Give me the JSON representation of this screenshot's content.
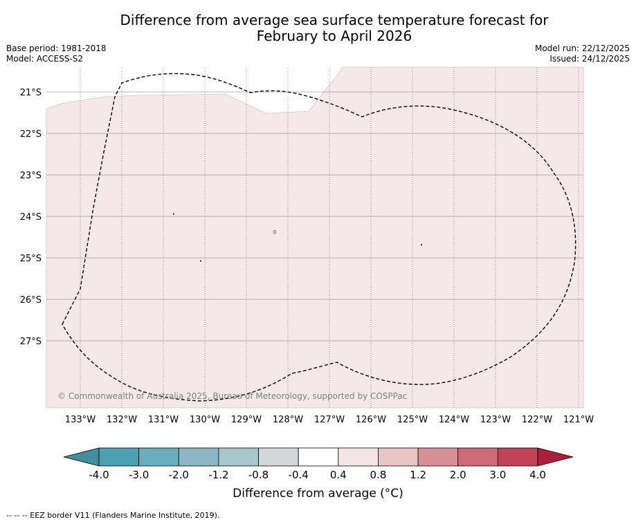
{
  "title": {
    "line1": "Difference from average sea surface temperature forecast for",
    "line2": "February to April 2026"
  },
  "meta": {
    "base_period": "Base period: 1981-2018",
    "model": "Model: ACCESS-S2",
    "model_run": "Model run: 22/12/2025",
    "issued": "Issued: 24/12/2025"
  },
  "map": {
    "copyright": "© Commonwealth of Australia 2025, Bureau of Meteorology, supported by COSPPac",
    "lon_labels": [
      "133°W",
      "132°W",
      "131°W",
      "130°W",
      "129°W",
      "128°W",
      "127°W",
      "126°W",
      "125°W",
      "124°W",
      "123°W",
      "122°W",
      "121°W"
    ],
    "lat_labels": [
      "21°S",
      "22°S",
      "23°S",
      "24°S",
      "25°S",
      "26°S",
      "27°S"
    ],
    "fill_color": "#f4e8e8"
  },
  "colorbar": {
    "ticks": [
      "-4.0",
      "-3.0",
      "-2.0",
      "-1.2",
      "-0.8",
      "-0.4",
      "0.4",
      "0.8",
      "1.2",
      "2.0",
      "3.0",
      "4.0"
    ],
    "colors": [
      "#3f8f9c",
      "#4aa1b2",
      "#6aaebd",
      "#8bb8c4",
      "#a9c8cc",
      "#d3d7d8",
      "#ffffff",
      "#f3e5e4",
      "#e8c4c2",
      "#d98f96",
      "#cf6b78",
      "#c24355",
      "#ae1f3d"
    ],
    "label": "Difference from average (°C)"
  },
  "footnote": "-- -- -- EEZ border V11 (Flanders Marine Institute, 2019)."
}
